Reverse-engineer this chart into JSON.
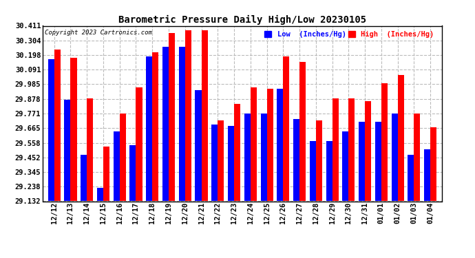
{
  "title": "Barometric Pressure Daily High/Low 20230105",
  "copyright": "Copyright 2023 Cartronics.com",
  "legend_low": "Low  (Inches/Hg)",
  "legend_high": "High  (Inches/Hg)",
  "low_color": "#0000ff",
  "high_color": "#ff0000",
  "bg_color": "#ffffff",
  "grid_color": "#bbbbbb",
  "ylim_min": 29.132,
  "ylim_max": 30.411,
  "yticks": [
    29.132,
    29.238,
    29.345,
    29.452,
    29.558,
    29.665,
    29.771,
    29.878,
    29.985,
    30.091,
    30.198,
    30.304,
    30.411
  ],
  "dates": [
    "12/12",
    "12/13",
    "12/14",
    "12/15",
    "12/16",
    "12/17",
    "12/18",
    "12/19",
    "12/20",
    "12/21",
    "12/22",
    "12/23",
    "12/24",
    "12/25",
    "12/26",
    "12/27",
    "12/28",
    "12/29",
    "12/30",
    "12/31",
    "01/01",
    "01/02",
    "01/03",
    "01/04"
  ],
  "high_values": [
    30.24,
    30.18,
    29.88,
    29.53,
    29.77,
    29.96,
    30.22,
    30.36,
    30.38,
    30.38,
    29.72,
    29.84,
    29.96,
    29.95,
    30.19,
    30.15,
    29.72,
    29.88,
    29.88,
    29.86,
    29.99,
    30.05,
    29.77,
    29.67
  ],
  "low_values": [
    30.17,
    29.87,
    29.47,
    29.23,
    29.64,
    29.54,
    30.19,
    30.26,
    30.26,
    29.94,
    29.69,
    29.68,
    29.77,
    29.77,
    29.95,
    29.73,
    29.57,
    29.57,
    29.64,
    29.71,
    29.71,
    29.77,
    29.47,
    29.51
  ]
}
